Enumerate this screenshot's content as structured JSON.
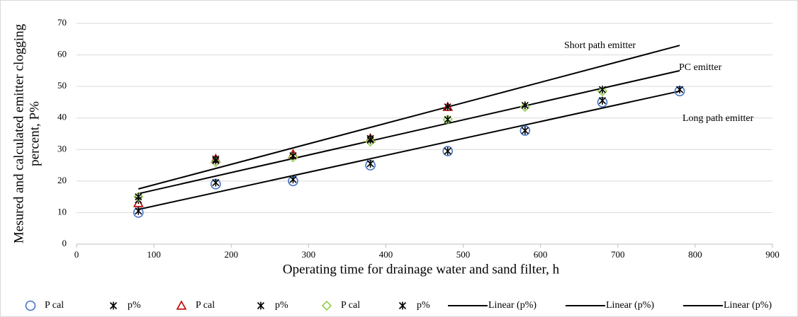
{
  "chart_data": {
    "type": "scatter",
    "xlabel": "Operating time for drainage water and sand filter, h",
    "ylabel": [
      "Mesured and calculated emitter clogging",
      "percent, P%"
    ],
    "xlim": [
      0,
      900
    ],
    "xticks": [
      0,
      100,
      200,
      300,
      400,
      500,
      600,
      700,
      800,
      900
    ],
    "ylim": [
      0,
      70
    ],
    "yticks": [
      0,
      10,
      20,
      30,
      40,
      50,
      60,
      70
    ],
    "grid": true,
    "legend": "bottom",
    "annotations": [
      "Short path emitter",
      "PC emitter",
      "Long path emitter"
    ],
    "series": [
      {
        "name": "P cal",
        "marker": "circle",
        "color": "#4472c4",
        "x": [
          80,
          180,
          280,
          380,
          480,
          580,
          680,
          780
        ],
        "values": [
          10,
          19,
          20,
          25,
          29.5,
          36,
          45,
          48.5
        ]
      },
      {
        "name": "p%",
        "marker": "star",
        "color": "#000000",
        "x": [
          80,
          180,
          280,
          380,
          480,
          580,
          680,
          780
        ],
        "values": [
          10.5,
          19.5,
          20.5,
          25.5,
          29.5,
          36,
          45.5,
          49
        ]
      },
      {
        "name": "P cal",
        "marker": "triangle",
        "color": "#c00000",
        "x": [
          80,
          180,
          280,
          380,
          480
        ],
        "values": [
          13,
          27,
          28.5,
          33.5,
          43.5
        ]
      },
      {
        "name": "p%",
        "marker": "star",
        "color": "#000000",
        "x": [
          80,
          180,
          280,
          380,
          480
        ],
        "values": [
          14,
          27,
          28,
          33.5,
          43.5
        ]
      },
      {
        "name": "P cal",
        "marker": "diamond",
        "color": "#92d050",
        "x": [
          80,
          180,
          280,
          380,
          480,
          580,
          680
        ],
        "values": [
          15,
          26,
          27.5,
          32.5,
          39.5,
          43.5,
          48.5
        ]
      },
      {
        "name": "p%",
        "marker": "star",
        "color": "#000000",
        "x": [
          80,
          180,
          280,
          380,
          480,
          580,
          680
        ],
        "values": [
          15,
          26.5,
          28,
          33,
          39.5,
          44,
          49
        ]
      },
      {
        "name": "Linear (p%)",
        "type": "line",
        "color": "#000000",
        "x": [
          80,
          780
        ],
        "values": [
          11,
          48.5
        ]
      },
      {
        "name": "Linear (p%)",
        "type": "line",
        "color": "#000000",
        "x": [
          80,
          780
        ],
        "values": [
          17.5,
          63
        ]
      },
      {
        "name": "Linear (p%)",
        "type": "line",
        "color": "#000000",
        "x": [
          80,
          780
        ],
        "values": [
          16,
          55
        ]
      }
    ]
  }
}
